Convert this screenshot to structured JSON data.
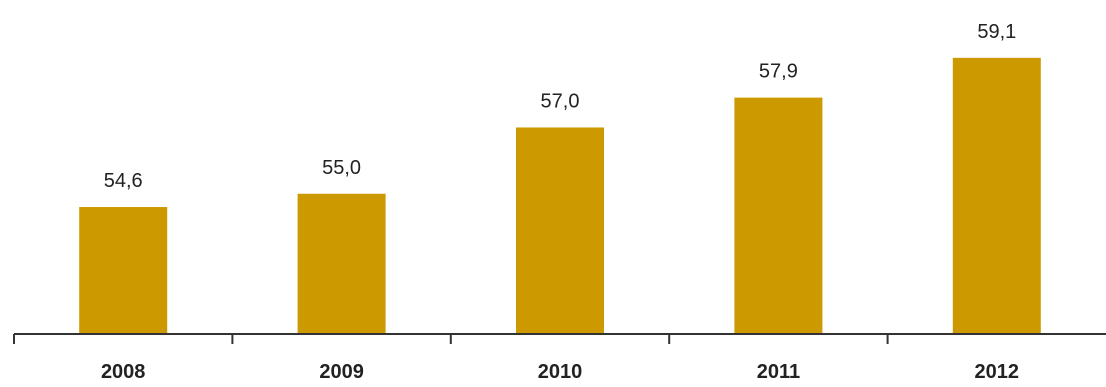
{
  "chart_data": {
    "type": "bar",
    "categories": [
      "2008",
      "2009",
      "2010",
      "2011",
      "2012"
    ],
    "values": [
      54.6,
      55.0,
      57.0,
      57.9,
      59.1
    ],
    "value_labels": [
      "54,6",
      "55,0",
      "57,0",
      "57,9",
      "59,1"
    ],
    "ylim": [
      50.8,
      60.0
    ],
    "grid": false,
    "legend": "none",
    "colors": {
      "bar": "#CC9900",
      "axis": "#333333"
    }
  }
}
